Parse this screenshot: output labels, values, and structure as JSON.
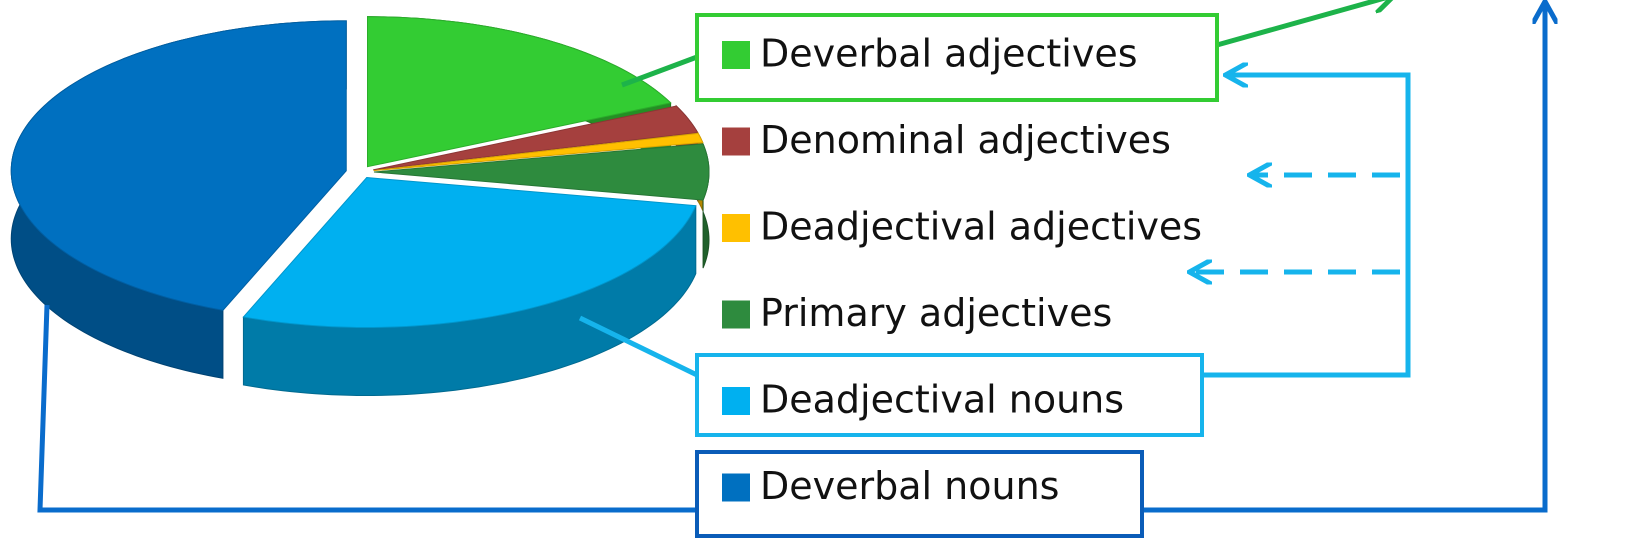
{
  "chart_data": {
    "type": "pie",
    "categories": [
      "Deverbal adjectives",
      "Denominal adjectives",
      "Deadjectival adjectives",
      "Primary adjectives",
      "Deadjectival nouns",
      "Deverbal nouns"
    ],
    "values": [
      18,
      3,
      1,
      6,
      28,
      44
    ],
    "colors": [
      "#33cc33",
      "#a5403e",
      "#ffc000",
      "#2e8b3e",
      "#00b0f0",
      "#0070c0"
    ],
    "legend": "right"
  }
}
